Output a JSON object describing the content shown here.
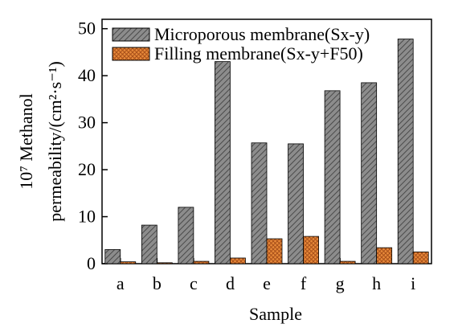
{
  "chart_data": {
    "type": "bar",
    "categories": [
      "a",
      "b",
      "c",
      "d",
      "e",
      "f",
      "g",
      "h",
      "i"
    ],
    "series": [
      {
        "name": "Microporous membrane(Sx-y)",
        "values": [
          3.0,
          8.2,
          12.0,
          43.0,
          25.7,
          25.5,
          36.8,
          38.5,
          47.8
        ],
        "color": "#808080",
        "pattern": "diagonal-hatch"
      },
      {
        "name": "Filling membrane(Sx-y+F50)",
        "values": [
          0.4,
          0.2,
          0.5,
          1.2,
          5.3,
          5.8,
          0.5,
          3.4,
          2.5
        ],
        "color": "#e07b2c",
        "pattern": "cross-hatch"
      }
    ],
    "xlabel": "Sample",
    "ylabel_line1": "10⁷ Methanol",
    "ylabel_line2": "permeability/(cm²·s⁻¹)",
    "ylim": [
      0,
      52
    ],
    "yticks": [
      "0",
      "10",
      "20",
      "30",
      "40",
      "50"
    ],
    "legend_position": "top-left",
    "grid": false
  }
}
